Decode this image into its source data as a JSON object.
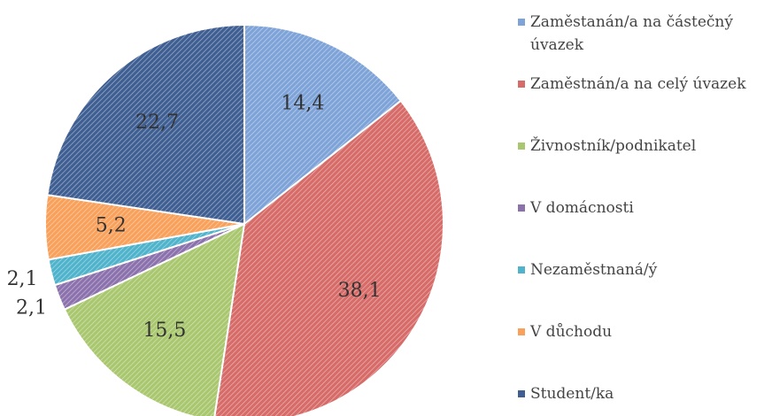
{
  "chart_data": {
    "type": "pie",
    "categories": [
      "Zaměstanán/a na částečný úvazek",
      "Zaměstnán/a na celý úvazek",
      "Živnostník/podnikatel",
      "V domácnosti",
      "Nezaměstnaná/ý",
      "V důchodu",
      "Student/ka"
    ],
    "values": [
      14.4,
      38.1,
      15.5,
      2.1,
      2.1,
      5.2,
      22.7
    ],
    "value_labels": [
      "14,4",
      "38,1",
      "15,5",
      "2,1",
      "2,1",
      "5,2",
      "22,7"
    ],
    "colors": [
      "#7ea3d8",
      "#d66b68",
      "#a9c76e",
      "#8c72ad",
      "#4fb3cc",
      "#f9a05a",
      "#3f5f93"
    ],
    "legend": "right"
  }
}
